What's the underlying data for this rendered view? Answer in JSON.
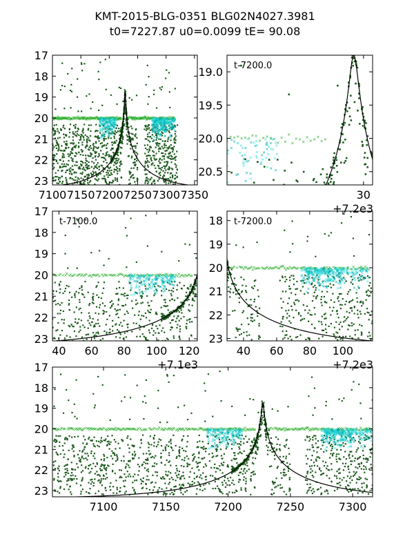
{
  "figure": {
    "title_line1": "KMT-2015-BLG-0351 BLG02N4027.3981",
    "title_line2": "t0=7227.87 u0=0.0099 tE=  90.08"
  },
  "colors": {
    "data_dark": "#1e5a1e",
    "data_green": "#22aa22",
    "data_cyan": "#33e0e0",
    "data_teal": "#00a8a8",
    "model": "#000000"
  },
  "chart_data": [
    {
      "id": "p1",
      "type": "scatter",
      "description_label": "",
      "xlim": [
        7100,
        7355
      ],
      "ylim": [
        23.2,
        17
      ],
      "xticks": [
        7100,
        7150,
        7200,
        7250,
        7300,
        7350
      ],
      "xtick_labels": [
        "7100",
        "7150",
        "7200",
        "7250",
        "7300",
        "7350"
      ],
      "yticks": [
        17,
        18,
        19,
        20,
        21,
        22,
        23
      ],
      "ytick_labels": [
        "17",
        "18",
        "19",
        "20",
        "21",
        "22",
        "23"
      ],
      "offset_label": "",
      "annotation": ""
    },
    {
      "id": "p2",
      "type": "scatter",
      "xlim": [
        7200,
        7232
      ],
      "ylim": [
        20.7,
        18.75
      ],
      "xticks": [
        7230
      ],
      "xtick_labels": [
        "30"
      ],
      "yticks": [
        19.0,
        19.5,
        20.0,
        20.5
      ],
      "ytick_labels": [
        "19.0",
        "19.5",
        "20.0",
        "20.5"
      ],
      "offset_label": "+7.2e3",
      "annotation": "t-7200.0"
    },
    {
      "id": "p3",
      "type": "scatter",
      "xlim": [
        7136,
        7225
      ],
      "ylim": [
        23.1,
        17
      ],
      "xticks": [
        7140,
        7160,
        7180,
        7200,
        7220
      ],
      "xtick_labels": [
        "40",
        "60",
        "80",
        "100",
        "120"
      ],
      "yticks": [
        17,
        18,
        19,
        20,
        21,
        22,
        23
      ],
      "ytick_labels": [
        "17",
        "18",
        "19",
        "20",
        "21",
        "22",
        "23"
      ],
      "offset_label": "+7.1e3",
      "annotation": "t-7100.0"
    },
    {
      "id": "p4",
      "type": "scatter",
      "xlim": [
        7230,
        7318
      ],
      "ylim": [
        23.1,
        17.6
      ],
      "xticks": [
        7240,
        7260,
        7280,
        7300
      ],
      "xtick_labels": [
        "40",
        "60",
        "80",
        "100"
      ],
      "yticks": [
        18,
        19,
        20,
        21,
        22,
        23
      ],
      "ytick_labels": [
        "18",
        "19",
        "20",
        "21",
        "22",
        "23"
      ],
      "offset_label": "+7.2e3",
      "annotation": "t-7200.0"
    },
    {
      "id": "p5",
      "type": "scatter",
      "xlim": [
        7059,
        7316
      ],
      "ylim": [
        23.3,
        17
      ],
      "xticks": [
        7100,
        7150,
        7200,
        7250,
        7300
      ],
      "xtick_labels": [
        "7100",
        "7150",
        "7200",
        "7250",
        "7300"
      ],
      "yticks": [
        17,
        18,
        19,
        20,
        21,
        22,
        23
      ],
      "ytick_labels": [
        "17",
        "18",
        "19",
        "20",
        "21",
        "22",
        "23"
      ],
      "offset_label": "",
      "annotation": ""
    }
  ],
  "model": {
    "t0": 7227.87,
    "u0": 0.0099,
    "tE": 90.08,
    "baseline_mag": 23.4,
    "peak_mag": 18.75
  }
}
